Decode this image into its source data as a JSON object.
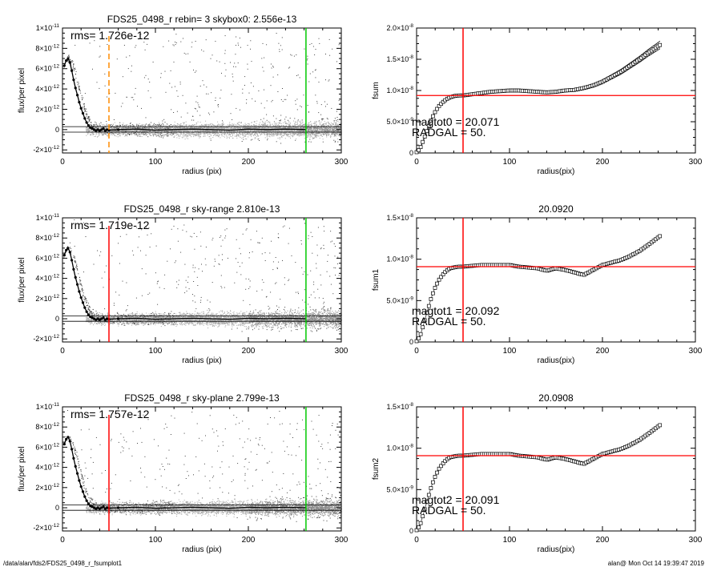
{
  "footer": {
    "path": "/data/alan/fds2/FDS25_0498_r_fsumplot1",
    "stamp": "alan@  Mon Oct 14 19:39:47 2019"
  },
  "colors": {
    "axes": "#000000",
    "points_dark": "#444444",
    "points_light": "#a8a8a8",
    "points_mid": "#8c8c8c",
    "profile": "#000000",
    "radgal_line": "#ff0000",
    "radgal_line_dashed": "#ff8c00",
    "sky_line": "#00c800",
    "level_line": "#ff0000",
    "fsum_marker": "#000000"
  },
  "chart_data": [
    {
      "type": "scatter",
      "title": "FDS25_0498_r rebin= 3    skybox0:  2.556e-13",
      "xlabel": "radius (pix)",
      "ylabel": "flux/per pixel",
      "xlim": [
        0,
        300
      ],
      "ylim": [
        -2.3e-12,
        1e-11
      ],
      "xticks": [
        0,
        100,
        200,
        300
      ],
      "xtick_labels": [
        "0",
        "100",
        "200",
        "300"
      ],
      "yticks": [
        -2e-12,
        0,
        2e-12,
        4e-12,
        6e-12,
        8e-12,
        1e-11
      ],
      "ytick_labels": [
        [
          "-2×10",
          "-12"
        ],
        [
          "0",
          ""
        ],
        [
          "2×10",
          "-12"
        ],
        [
          "4×10",
          "-12"
        ],
        [
          "6×10",
          "-12"
        ],
        [
          "8×10",
          "-12"
        ],
        [
          "1×10",
          "-11"
        ]
      ],
      "annotation": "rms= 1.726e-12",
      "radgal_x": 50,
      "radgal_style": "dashed",
      "sky_x": 262,
      "hlines_y": [
        2.9e-13,
        -2.5e-13
      ],
      "profile_x": [
        2,
        4,
        6,
        8,
        10,
        12,
        14,
        16,
        18,
        20,
        22,
        24,
        26,
        28,
        30,
        32,
        34,
        36,
        38,
        40,
        42,
        44,
        46,
        48,
        50,
        60,
        80,
        100,
        120,
        140,
        160,
        180,
        200,
        220,
        240,
        262
      ],
      "profile_y": [
        6.3e-12,
        6.8e-12,
        7e-12,
        6.6e-12,
        5.8e-12,
        4.9e-12,
        4.1e-12,
        3.4e-12,
        2.7e-12,
        2.1e-12,
        1.6e-12,
        1.1e-12,
        7e-13,
        4e-13,
        2e-13,
        1e-13,
        0,
        -1e-13,
        0,
        -1e-13,
        0,
        1e-13,
        -1e-13,
        0,
        -5e-14,
        0,
        5e-14,
        -5e-14,
        0,
        5e-14,
        0,
        -5e-14,
        5e-14,
        0,
        5e-14,
        0
      ]
    },
    {
      "type": "scatter",
      "title": "",
      "xlabel": "radius(pix)",
      "ylabel": "fsum",
      "xlim": [
        0,
        300
      ],
      "ylim": [
        0,
        2e-08
      ],
      "xticks": [
        0,
        100,
        200,
        300
      ],
      "xtick_labels": [
        "0",
        "100",
        "200",
        "300"
      ],
      "yticks": [
        0,
        5e-09,
        1e-08,
        1.5e-08,
        2e-08
      ],
      "ytick_labels": [
        [
          "0",
          ""
        ],
        [
          "5.0×10",
          "-9"
        ],
        [
          "1.0×10",
          "-8"
        ],
        [
          "1.5×10",
          "-8"
        ],
        [
          "2.0×10",
          "-8"
        ]
      ],
      "annotation_lines": [
        "magtot0 =  20.071",
        "RADGAL =     50."
      ],
      "radgal_x": 50,
      "level_y": 9.2e-09,
      "envelope": true,
      "fsum_x": [
        0,
        4,
        8,
        12,
        16,
        20,
        24,
        28,
        32,
        36,
        40,
        45,
        50,
        60,
        70,
        80,
        90,
        100,
        110,
        120,
        130,
        140,
        150,
        160,
        170,
        180,
        190,
        200,
        210,
        220,
        230,
        240,
        250,
        262
      ],
      "fsum_y": [
        0,
        8e-10,
        2.3e-09,
        3.9e-09,
        5.4e-09,
        6.6e-09,
        7.5e-09,
        8.1e-09,
        8.6e-09,
        8.9e-09,
        9.1e-09,
        9.2e-09,
        9.2e-09,
        9.4e-09,
        9.6e-09,
        9.8e-09,
        9.9e-09,
        1e-08,
        1e-08,
        9.9e-09,
        9.8e-09,
        9.7e-09,
        9.8e-09,
        1e-08,
        1.01e-08,
        1.04e-08,
        1.08e-08,
        1.14e-08,
        1.22e-08,
        1.3e-08,
        1.4e-08,
        1.5e-08,
        1.61e-08,
        1.73e-08
      ]
    },
    {
      "type": "scatter",
      "title": "FDS25_0498_r sky-range  2.810e-13",
      "xlabel": "radius (pix)",
      "ylabel": "flux/per pixel",
      "xlim": [
        0,
        300
      ],
      "ylim": [
        -2.3e-12,
        1e-11
      ],
      "xticks": [
        0,
        100,
        200,
        300
      ],
      "xtick_labels": [
        "0",
        "100",
        "200",
        "300"
      ],
      "yticks": [
        -2e-12,
        0,
        2e-12,
        4e-12,
        6e-12,
        8e-12,
        1e-11
      ],
      "ytick_labels": [
        [
          "-2×10",
          "-12"
        ],
        [
          "0",
          ""
        ],
        [
          "2×10",
          "-12"
        ],
        [
          "4×10",
          "-12"
        ],
        [
          "6×10",
          "-12"
        ],
        [
          "8×10",
          "-12"
        ],
        [
          "1×10",
          "-11"
        ]
      ],
      "annotation": "rms= 1.719e-12",
      "radgal_x": 50,
      "radgal_style": "solid",
      "sky_x": 262,
      "hlines_y": [
        2.8e-13,
        -2.5e-13
      ],
      "profile_x": [
        2,
        4,
        6,
        8,
        10,
        12,
        14,
        16,
        18,
        20,
        22,
        24,
        26,
        28,
        30,
        32,
        34,
        36,
        38,
        40,
        42,
        44,
        46,
        48,
        50,
        60,
        80,
        100,
        120,
        140,
        160,
        180,
        200,
        220,
        240,
        262
      ],
      "profile_y": [
        6.3e-12,
        6.8e-12,
        7e-12,
        6.6e-12,
        5.8e-12,
        4.9e-12,
        4.1e-12,
        3.4e-12,
        2.7e-12,
        2.1e-12,
        1.6e-12,
        1.1e-12,
        7e-13,
        4e-13,
        2e-13,
        1e-13,
        0,
        -1e-13,
        0,
        -1e-13,
        0,
        1e-13,
        -1e-13,
        0,
        -5e-14,
        0,
        5e-14,
        -5e-14,
        0,
        5e-14,
        0,
        -5e-14,
        5e-14,
        0,
        5e-14,
        0
      ]
    },
    {
      "type": "scatter",
      "title": "20.0920",
      "xlabel": "radius(pix)",
      "ylabel": "fsum1",
      "xlim": [
        0,
        300
      ],
      "ylim": [
        0,
        1.5e-08
      ],
      "xticks": [
        0,
        100,
        200,
        300
      ],
      "xtick_labels": [
        "0",
        "100",
        "200",
        "300"
      ],
      "yticks": [
        0,
        5e-09,
        1e-08,
        1.5e-08
      ],
      "ytick_labels": [
        [
          "0",
          ""
        ],
        [
          "5.0×10",
          "-9"
        ],
        [
          "1.0×10",
          "-8"
        ],
        [
          "1.5×10",
          "-8"
        ]
      ],
      "annotation_lines": [
        "magtot1 =  20.092",
        "RADGAL =     50."
      ],
      "radgal_x": 50,
      "level_y": 9.1e-09,
      "envelope": false,
      "fsum_x": [
        0,
        4,
        8,
        12,
        16,
        20,
        24,
        28,
        32,
        36,
        40,
        45,
        50,
        60,
        70,
        80,
        90,
        100,
        110,
        120,
        130,
        140,
        150,
        160,
        170,
        180,
        190,
        200,
        210,
        220,
        230,
        240,
        250,
        262
      ],
      "fsum_y": [
        0,
        8e-10,
        2.3e-09,
        3.9e-09,
        5.4e-09,
        6.6e-09,
        7.5e-09,
        8.1e-09,
        8.6e-09,
        8.9e-09,
        9e-09,
        9.1e-09,
        9.1e-09,
        9.2e-09,
        9.3e-09,
        9.3e-09,
        9.3e-09,
        9.3e-09,
        9.1e-09,
        9e-09,
        8.9e-09,
        8.6e-09,
        8.9e-09,
        8.7e-09,
        8.4e-09,
        8.1e-09,
        8.7e-09,
        9.3e-09,
        9.6e-09,
        9.9e-09,
        1.04e-08,
        1.1e-08,
        1.18e-08,
        1.28e-08
      ]
    },
    {
      "type": "scatter",
      "title": "FDS25_0498_r sky-plane  2.799e-13",
      "xlabel": "radius (pix)",
      "ylabel": "flux/per pixel",
      "xlim": [
        0,
        300
      ],
      "ylim": [
        -2.3e-12,
        1e-11
      ],
      "xticks": [
        0,
        100,
        200,
        300
      ],
      "xtick_labels": [
        "0",
        "100",
        "200",
        "300"
      ],
      "yticks": [
        -2e-12,
        0,
        2e-12,
        4e-12,
        6e-12,
        8e-12,
        1e-11
      ],
      "ytick_labels": [
        [
          "-2×10",
          "-12"
        ],
        [
          "0",
          ""
        ],
        [
          "2×10",
          "-12"
        ],
        [
          "4×10",
          "-12"
        ],
        [
          "6×10",
          "-12"
        ],
        [
          "8×10",
          "-12"
        ],
        [
          "1×10",
          "-11"
        ]
      ],
      "annotation": "rms= 1.757e-12",
      "radgal_x": 50,
      "radgal_style": "solid",
      "sky_x": 262,
      "hlines_y": [
        2.8e-13,
        -2.5e-13
      ],
      "profile_x": [
        2,
        4,
        6,
        8,
        10,
        12,
        14,
        16,
        18,
        20,
        22,
        24,
        26,
        28,
        30,
        32,
        34,
        36,
        38,
        40,
        42,
        44,
        46,
        48,
        50,
        60,
        80,
        100,
        120,
        140,
        160,
        180,
        200,
        220,
        240,
        262
      ],
      "profile_y": [
        6.3e-12,
        6.8e-12,
        7e-12,
        6.6e-12,
        5.8e-12,
        4.9e-12,
        4.1e-12,
        3.4e-12,
        2.7e-12,
        2.1e-12,
        1.6e-12,
        1.1e-12,
        7e-13,
        4e-13,
        2e-13,
        1e-13,
        0,
        -1e-13,
        0,
        -1e-13,
        0,
        1e-13,
        -1e-13,
        0,
        -5e-14,
        0,
        5e-14,
        -5e-14,
        0,
        5e-14,
        0,
        -5e-14,
        5e-14,
        0,
        5e-14,
        0
      ]
    },
    {
      "type": "scatter",
      "title": "20.0908",
      "xlabel": "radius(pix)",
      "ylabel": "fsum2",
      "xlim": [
        0,
        300
      ],
      "ylim": [
        0,
        1.5e-08
      ],
      "xticks": [
        0,
        100,
        200,
        300
      ],
      "xtick_labels": [
        "0",
        "100",
        "200",
        "300"
      ],
      "yticks": [
        0,
        5e-09,
        1e-08,
        1.5e-08
      ],
      "ytick_labels": [
        [
          "0",
          ""
        ],
        [
          "5.0×10",
          "-9"
        ],
        [
          "1.0×10",
          "-8"
        ],
        [
          "1.5×10",
          "-8"
        ]
      ],
      "annotation_lines": [
        "magtot2 =  20.091",
        "RADGAL =     50."
      ],
      "radgal_x": 50,
      "level_y": 9.1e-09,
      "envelope": false,
      "fsum_x": [
        0,
        4,
        8,
        12,
        16,
        20,
        24,
        28,
        32,
        36,
        40,
        45,
        50,
        60,
        70,
        80,
        90,
        100,
        110,
        120,
        130,
        140,
        150,
        160,
        170,
        180,
        190,
        200,
        210,
        220,
        230,
        240,
        250,
        262
      ],
      "fsum_y": [
        0,
        8e-10,
        2.3e-09,
        3.9e-09,
        5.4e-09,
        6.6e-09,
        7.5e-09,
        8.1e-09,
        8.6e-09,
        8.9e-09,
        9e-09,
        9.1e-09,
        9.1e-09,
        9.2e-09,
        9.3e-09,
        9.3e-09,
        9.3e-09,
        9.3e-09,
        9.1e-09,
        9e-09,
        8.9e-09,
        8.6e-09,
        8.9e-09,
        8.7e-09,
        8.4e-09,
        8.1e-09,
        8.7e-09,
        9.3e-09,
        9.6e-09,
        9.9e-09,
        1.04e-08,
        1.1e-08,
        1.18e-08,
        1.28e-08
      ]
    }
  ]
}
